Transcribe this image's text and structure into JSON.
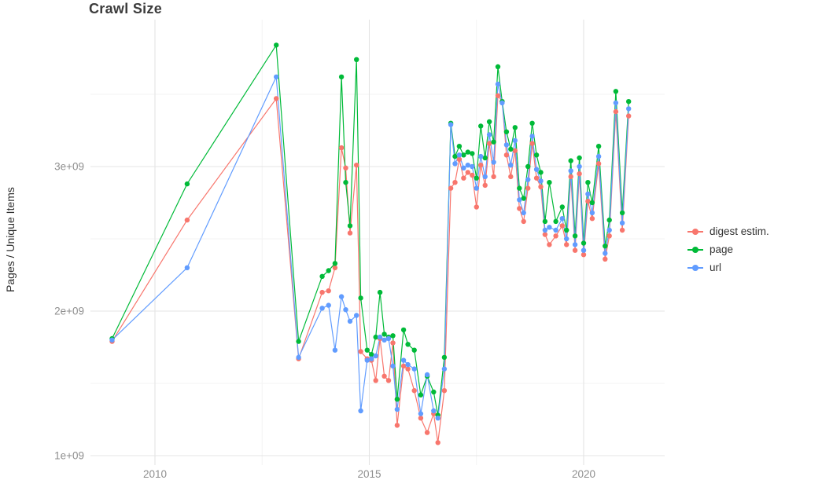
{
  "chart_data": {
    "type": "line",
    "title": "Crawl Size",
    "xlabel": "",
    "ylabel": "Pages / Unique Items",
    "legend_position": "right",
    "grid": true,
    "x_ticks": [
      2010,
      2015,
      2020
    ],
    "x_tick_labels": [
      "2010",
      "2015",
      "2020"
    ],
    "y_ticks_billions": [
      1,
      2,
      3
    ],
    "y_tick_labels": [
      "1e+09",
      "2e+09",
      "3e+09"
    ],
    "xlim": [
      2008.5,
      2021.9
    ],
    "ylim_billions": [
      0.93,
      4.0
    ],
    "values_unit": "pages (billions, 1e9)",
    "x": [
      2009.0,
      2010.75,
      2012.83,
      2013.35,
      2013.9,
      2014.05,
      2014.2,
      2014.35,
      2014.45,
      2014.55,
      2014.7,
      2014.8,
      2014.95,
      2015.05,
      2015.15,
      2015.25,
      2015.35,
      2015.45,
      2015.55,
      2015.65,
      2015.8,
      2015.9,
      2016.05,
      2016.2,
      2016.35,
      2016.5,
      2016.6,
      2016.75,
      2016.9,
      2017.0,
      2017.1,
      2017.2,
      2017.3,
      2017.4,
      2017.5,
      2017.6,
      2017.7,
      2017.8,
      2017.9,
      2018.0,
      2018.1,
      2018.2,
      2018.3,
      2018.4,
      2018.5,
      2018.6,
      2018.7,
      2018.8,
      2018.9,
      2019.0,
      2019.1,
      2019.2,
      2019.35,
      2019.5,
      2019.6,
      2019.7,
      2019.8,
      2019.9,
      2020.0,
      2020.1,
      2020.2,
      2020.35,
      2020.5,
      2020.6,
      2020.75,
      2020.9,
      2021.05
    ],
    "series": [
      {
        "name": "digest estim.",
        "color": "#F8766D",
        "values": [
          1.79,
          2.63,
          3.47,
          1.67,
          2.13,
          2.14,
          2.3,
          3.13,
          2.99,
          2.54,
          3.01,
          1.72,
          1.67,
          1.66,
          1.52,
          1.81,
          1.55,
          1.52,
          1.78,
          1.21,
          1.62,
          1.6,
          1.45,
          1.26,
          1.16,
          1.29,
          1.09,
          1.45,
          2.85,
          2.89,
          3.05,
          2.92,
          2.96,
          2.94,
          2.72,
          3.01,
          2.87,
          3.16,
          2.93,
          3.49,
          3.45,
          3.08,
          2.93,
          3.11,
          2.71,
          2.62,
          2.85,
          3.16,
          2.92,
          2.86,
          2.53,
          2.46,
          2.52,
          2.59,
          2.46,
          2.93,
          2.42,
          2.95,
          2.39,
          2.76,
          2.64,
          3.02,
          2.36,
          2.52,
          3.38,
          2.56,
          3.35
        ]
      },
      {
        "name": "page",
        "color": "#00BA38",
        "values": [
          1.81,
          2.88,
          3.84,
          1.79,
          2.24,
          2.28,
          2.33,
          3.62,
          2.89,
          2.59,
          3.74,
          2.09,
          1.73,
          1.7,
          1.82,
          2.13,
          1.84,
          1.82,
          1.83,
          1.39,
          1.87,
          1.77,
          1.73,
          1.42,
          1.55,
          1.44,
          1.28,
          1.68,
          3.3,
          3.07,
          3.14,
          3.08,
          3.1,
          3.09,
          2.92,
          3.28,
          3.06,
          3.31,
          3.17,
          3.69,
          3.45,
          3.24,
          3.12,
          3.27,
          2.85,
          2.78,
          3.0,
          3.3,
          3.08,
          2.96,
          2.62,
          2.89,
          2.62,
          2.72,
          2.56,
          3.04,
          2.52,
          3.06,
          2.47,
          2.89,
          2.75,
          3.14,
          2.45,
          2.63,
          3.52,
          2.68,
          3.45
        ]
      },
      {
        "name": "url",
        "color": "#619CFF",
        "values": [
          1.8,
          2.3,
          3.62,
          1.68,
          2.02,
          2.04,
          1.73,
          2.1,
          2.01,
          1.93,
          1.97,
          1.31,
          1.66,
          1.67,
          1.69,
          1.82,
          1.8,
          1.81,
          1.62,
          1.32,
          1.66,
          1.63,
          1.6,
          1.29,
          1.56,
          1.31,
          1.26,
          1.6,
          3.29,
          3.02,
          3.08,
          2.99,
          3.01,
          3.0,
          2.85,
          3.07,
          2.93,
          3.22,
          3.03,
          3.57,
          3.44,
          3.15,
          3.01,
          3.18,
          2.77,
          2.68,
          2.91,
          3.21,
          2.98,
          2.9,
          2.56,
          2.58,
          2.56,
          2.64,
          2.5,
          2.97,
          2.46,
          3.0,
          2.42,
          2.81,
          2.68,
          3.07,
          2.4,
          2.56,
          3.44,
          2.61,
          3.4
        ]
      }
    ]
  }
}
